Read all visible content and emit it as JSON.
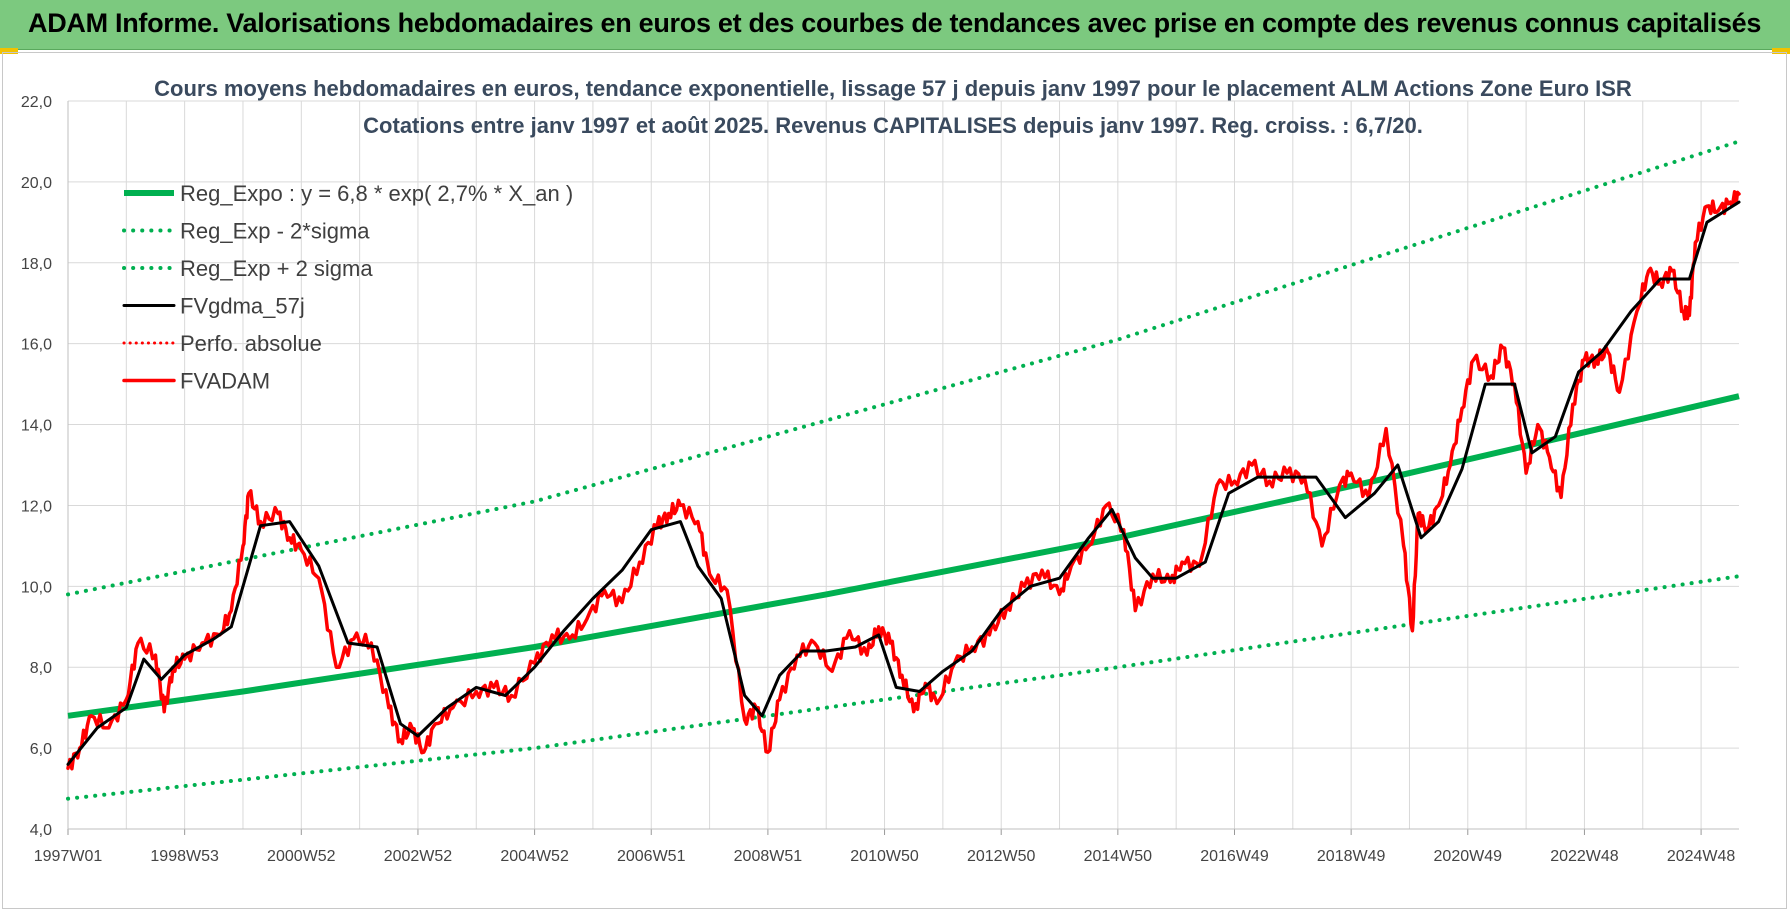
{
  "header": {
    "title": "ADAM Informe. Valorisations hebdomadaires en euros et des courbes de tendances avec prise en compte des revenus connus capitalisés"
  },
  "colors": {
    "banner": "#7cc97f",
    "regression": "#00b050",
    "fv57": "#000000",
    "fvadam": "#ff0000",
    "grid": "#d9d9d9"
  },
  "chart_data": {
    "type": "line",
    "title_line1": "Cours moyens hebdomadaires en euros, tendance exponentielle, lissage 57 j depuis janv 1997 pour le placement ALM Actions Zone Euro ISR",
    "title_line2": "Cotations entre janv 1997 et août 2025. Revenus CAPITALISES depuis janv 1997. Reg. croiss. : 6,7/20.",
    "ylim": [
      4,
      22
    ],
    "y_ticks": [
      "4,0",
      "6,0",
      "8,0",
      "10,0",
      "12,0",
      "14,0",
      "16,0",
      "18,0",
      "20,0",
      "22,0"
    ],
    "x_ticks": [
      "1997W01",
      "1998W53",
      "2000W52",
      "2002W52",
      "2004W52",
      "2006W51",
      "2008W51",
      "2010W50",
      "2012W50",
      "2014W50",
      "2016W49",
      "2018W49",
      "2020W49",
      "2022W48",
      "2024W48"
    ],
    "x_tick_years": [
      1997.0,
      1999.0,
      2001.0,
      2003.0,
      2005.0,
      2007.0,
      2009.0,
      2011.0,
      2013.0,
      2015.0,
      2017.0,
      2019.0,
      2021.0,
      2023.0,
      2025.0
    ],
    "x_range_years": [
      1997.0,
      2025.65
    ],
    "legend": [
      "Reg_Expo : y = 6,8 * exp( 2,7% *  X_an )",
      "Reg_Exp - 2*sigma",
      "Reg_Exp + 2 sigma",
      "FVgdma_57j",
      "Perfo. absolue",
      "FVADAM"
    ],
    "series": [
      {
        "name": "Reg_Expo : y = 6,8 * exp( 2,7% *  X_an )",
        "x": [
          1997.0,
          2000.0,
          2005.0,
          2010.0,
          2015.0,
          2020.0,
          2025.65
        ],
        "y": [
          6.8,
          7.4,
          8.5,
          9.8,
          11.2,
          12.8,
          14.7
        ]
      },
      {
        "name": "Reg_Exp - 2*sigma",
        "x": [
          1997.0,
          2005.0,
          2015.0,
          2025.65
        ],
        "y": [
          4.75,
          6.0,
          8.0,
          10.25
        ]
      },
      {
        "name": "Reg_Exp + 2 sigma",
        "x": [
          1997.0,
          2005.0,
          2015.0,
          2025.65
        ],
        "y": [
          9.8,
          12.1,
          16.1,
          21.0
        ]
      },
      {
        "name": "FVgdma_57j",
        "x": [
          1997.0,
          1997.5,
          1998.0,
          1998.3,
          1998.6,
          1999.0,
          1999.5,
          1999.8,
          2000.3,
          2000.8,
          2001.3,
          2001.8,
          2002.3,
          2002.7,
          2003.0,
          2003.5,
          2004.0,
          2004.5,
          2005.0,
          2005.5,
          2006.0,
          2006.5,
          2007.0,
          2007.5,
          2007.8,
          2008.2,
          2008.6,
          2008.9,
          2009.2,
          2009.6,
          2010.0,
          2010.5,
          2010.9,
          2011.2,
          2011.6,
          2012.0,
          2012.5,
          2013.0,
          2013.5,
          2014.0,
          2014.5,
          2014.9,
          2015.3,
          2015.6,
          2016.0,
          2016.5,
          2016.9,
          2017.4,
          2017.9,
          2018.4,
          2018.9,
          2019.4,
          2019.8,
          2020.2,
          2020.5,
          2020.9,
          2021.3,
          2021.8,
          2022.1,
          2022.5,
          2022.9,
          2023.3,
          2023.8,
          2024.3,
          2024.8,
          2025.1,
          2025.65
        ],
        "y": [
          5.6,
          6.5,
          7.0,
          8.2,
          7.7,
          8.3,
          8.7,
          9.0,
          11.5,
          11.6,
          10.5,
          8.6,
          8.5,
          6.6,
          6.3,
          7.0,
          7.5,
          7.3,
          8.0,
          8.9,
          9.7,
          10.4,
          11.4,
          11.6,
          10.5,
          9.7,
          7.3,
          6.8,
          7.8,
          8.4,
          8.4,
          8.5,
          8.8,
          7.5,
          7.4,
          7.9,
          8.4,
          9.4,
          10.0,
          10.2,
          11.2,
          11.9,
          10.7,
          10.2,
          10.2,
          10.6,
          12.3,
          12.7,
          12.7,
          12.7,
          11.7,
          12.3,
          13.0,
          11.2,
          11.6,
          12.9,
          15.0,
          15.0,
          13.3,
          13.7,
          15.3,
          15.8,
          16.8,
          17.6,
          17.6,
          19.0,
          19.5
        ]
      },
      {
        "name": "Perfo. absolue",
        "x": [],
        "y": []
      },
      {
        "name": "FVADAM",
        "x": [
          1997.0,
          1997.2,
          1997.4,
          1997.7,
          1998.0,
          1998.2,
          1998.5,
          1998.65,
          1998.8,
          1999.0,
          1999.3,
          1999.6,
          1999.8,
          2000.0,
          2000.1,
          2000.3,
          2000.6,
          2000.8,
          2001.0,
          2001.3,
          2001.6,
          2001.9,
          2002.2,
          2002.5,
          2002.7,
          2002.9,
          2003.1,
          2003.3,
          2003.6,
          2004.0,
          2004.3,
          2004.6,
          2005.0,
          2005.3,
          2005.6,
          2005.9,
          2006.2,
          2006.5,
          2006.8,
          2007.1,
          2007.3,
          2007.5,
          2007.8,
          2008.0,
          2008.3,
          2008.6,
          2008.8,
          2009.0,
          2009.2,
          2009.5,
          2009.8,
          2010.1,
          2010.4,
          2010.7,
          2010.9,
          2011.1,
          2011.3,
          2011.5,
          2011.7,
          2011.9,
          2012.2,
          2012.5,
          2012.8,
          2013.1,
          2013.4,
          2013.7,
          2014.0,
          2014.2,
          2014.5,
          2014.8,
          2015.1,
          2015.3,
          2015.6,
          2015.9,
          2016.1,
          2016.4,
          2016.7,
          2017.0,
          2017.3,
          2017.6,
          2017.9,
          2018.2,
          2018.5,
          2018.8,
          2019.0,
          2019.3,
          2019.6,
          2019.9,
          2020.05,
          2020.15,
          2020.3,
          2020.5,
          2020.7,
          2020.9,
          2021.1,
          2021.4,
          2021.6,
          2021.8,
          2022.0,
          2022.2,
          2022.4,
          2022.6,
          2022.8,
          2023.0,
          2023.2,
          2023.4,
          2023.6,
          2023.9,
          2024.1,
          2024.3,
          2024.5,
          2024.7,
          2024.8,
          2024.9,
          2025.1,
          2025.3,
          2025.5,
          2025.65
        ],
        "y": [
          5.5,
          6.0,
          6.8,
          6.5,
          7.2,
          8.6,
          8.3,
          6.9,
          8.0,
          8.2,
          8.6,
          8.8,
          9.4,
          11.0,
          12.3,
          11.6,
          11.8,
          11.2,
          10.9,
          10.2,
          8.0,
          8.7,
          8.6,
          7.0,
          6.2,
          6.5,
          5.9,
          6.6,
          7.0,
          7.4,
          7.5,
          7.3,
          8.1,
          8.8,
          8.7,
          9.2,
          9.9,
          9.6,
          10.6,
          11.5,
          11.8,
          12.0,
          11.6,
          10.3,
          9.9,
          6.7,
          7.0,
          5.9,
          7.2,
          8.3,
          8.6,
          7.9,
          8.9,
          8.3,
          9.0,
          8.6,
          7.8,
          6.9,
          7.6,
          7.1,
          8.1,
          8.5,
          8.8,
          9.5,
          10.0,
          10.4,
          9.8,
          10.5,
          11.0,
          12.0,
          11.4,
          9.4,
          10.3,
          10.1,
          10.6,
          10.5,
          12.5,
          12.6,
          13.0,
          12.6,
          12.8,
          12.7,
          11.0,
          12.5,
          12.8,
          12.2,
          13.9,
          11.0,
          8.9,
          11.8,
          11.4,
          12.0,
          13.0,
          14.4,
          15.6,
          15.2,
          15.9,
          15.0,
          12.8,
          14.0,
          13.2,
          12.2,
          14.5,
          15.6,
          15.6,
          15.8,
          14.8,
          16.8,
          17.8,
          17.5,
          17.8,
          16.8,
          16.7,
          18.5,
          19.4,
          19.3,
          19.5,
          19.7
        ]
      }
    ]
  }
}
